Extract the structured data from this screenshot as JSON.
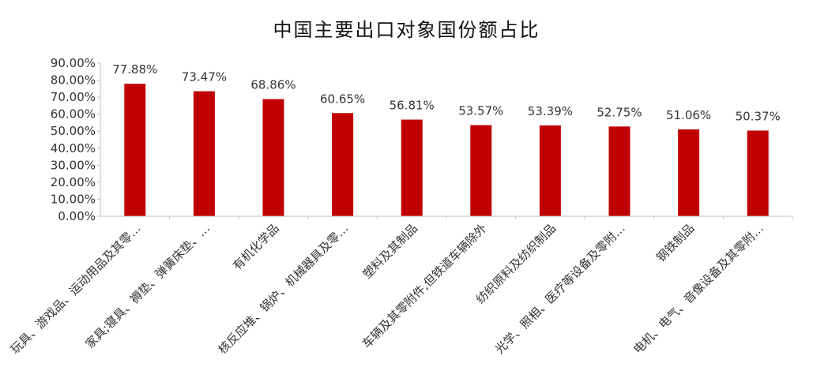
{
  "chart_data": {
    "type": "bar",
    "title": "中国主要出口对象国份额占比",
    "xlabel": "",
    "ylabel": "",
    "ylim": [
      0,
      90
    ],
    "yticks": [
      "0.00%",
      "10.00%",
      "20.00%",
      "30.00%",
      "40.00%",
      "50.00%",
      "60.00%",
      "70.00%",
      "80.00%",
      "90.00%"
    ],
    "categories": [
      "玩具、游戏品、运动用品及其零…",
      "家具;寝具、褥垫、弹簧床垫、…",
      "有机化学品",
      "核反应堆、锅炉、机械器具及零…",
      "塑料及其制品",
      "车辆及其零附件,但铁道车辆除外",
      "纺织原料及纺织制品",
      "光学、照相、医疗等设备及零附…",
      "钢铁制品",
      "电机、电气、音像设备及其零附…"
    ],
    "values": [
      77.88,
      73.47,
      68.86,
      60.65,
      56.81,
      53.57,
      53.39,
      52.75,
      51.06,
      50.37
    ],
    "data_labels": [
      "77.88%",
      "73.47%",
      "68.86%",
      "60.65%",
      "56.81%",
      "53.57%",
      "53.39%",
      "52.75%",
      "51.06%",
      "50.37%"
    ],
    "bar_color": "#C00000",
    "grid": false,
    "legend": "none"
  }
}
